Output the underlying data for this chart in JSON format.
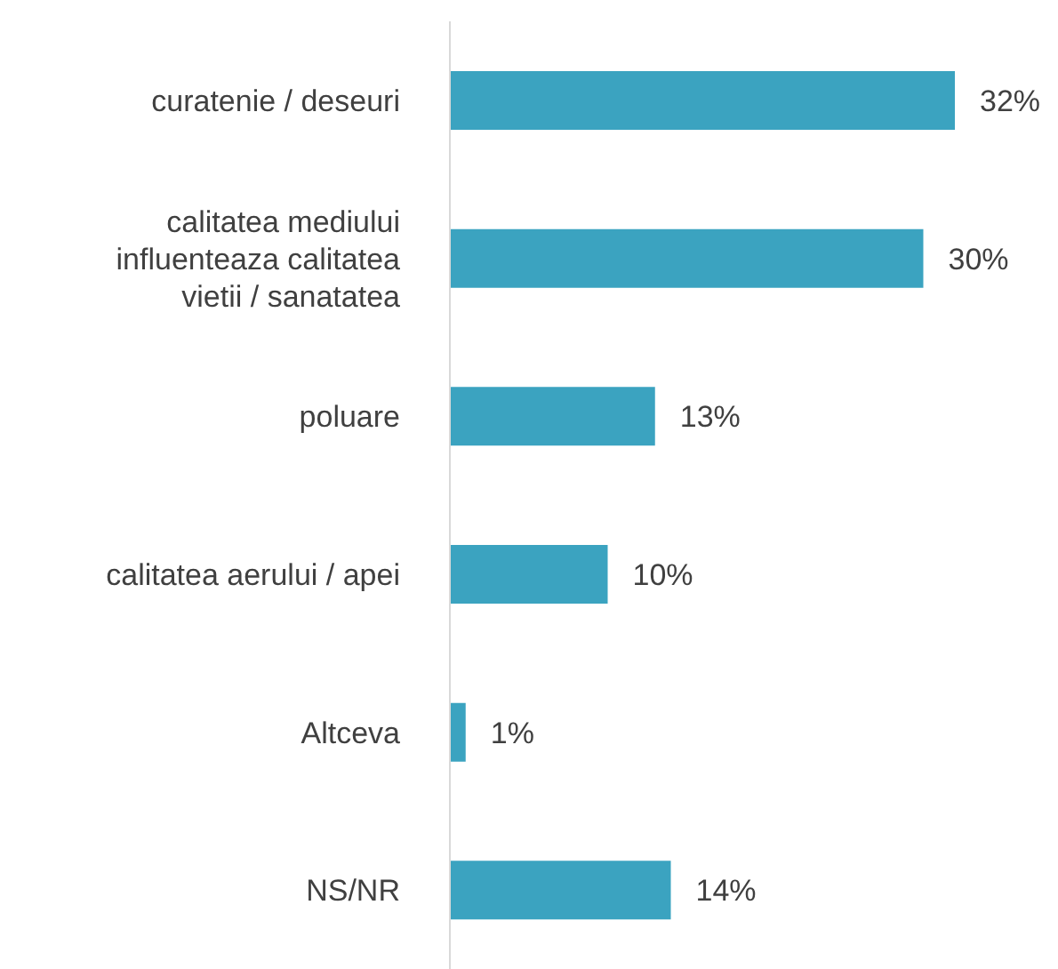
{
  "chart_data": {
    "type": "bar",
    "orientation": "horizontal",
    "categories": [
      "curatenie / deseuri",
      "calitatea mediului influenteaza calitatea vietii / sanatatea",
      "poluare",
      "calitatea aerului / apei",
      "Altceva",
      "NS/NR"
    ],
    "values": [
      32,
      30,
      13,
      10,
      1,
      14
    ],
    "color": "#3ba3c0",
    "value_labels": [
      "32%",
      "30%",
      "13%",
      "10%",
      "1%",
      "14%"
    ]
  }
}
